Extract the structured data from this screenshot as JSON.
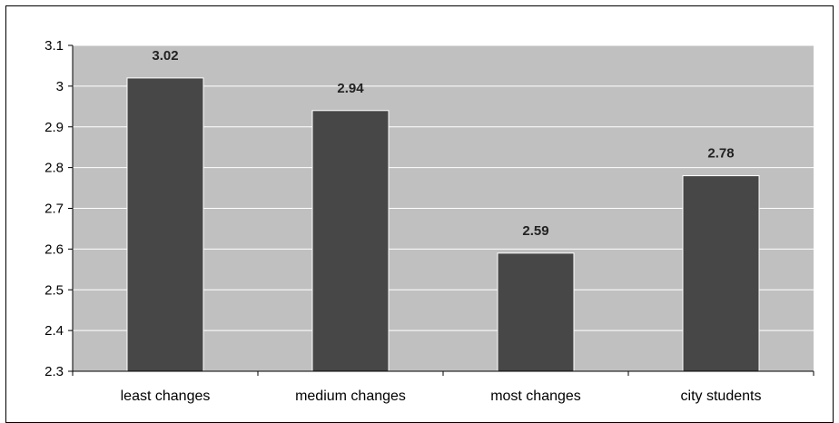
{
  "chart_data": {
    "type": "bar",
    "categories": [
      "least changes",
      "medium changes",
      "most changes",
      "city students"
    ],
    "values": [
      3.02,
      2.94,
      2.59,
      2.78
    ],
    "data_labels": [
      "3.02",
      "2.94",
      "2.59",
      "2.78"
    ],
    "title": "",
    "xlabel": "",
    "ylabel": "",
    "ylim": [
      2.3,
      3.1
    ],
    "y_ticks": [
      "2.3",
      "2.4",
      "2.5",
      "2.6",
      "2.7",
      "2.8",
      "2.9",
      "3",
      "3.1"
    ],
    "grid": true,
    "legend": "none",
    "colors": {
      "plot_background": "#c0c0c0",
      "bar": "#474747",
      "gridline": "#ffffff",
      "axis": "#000000"
    }
  }
}
